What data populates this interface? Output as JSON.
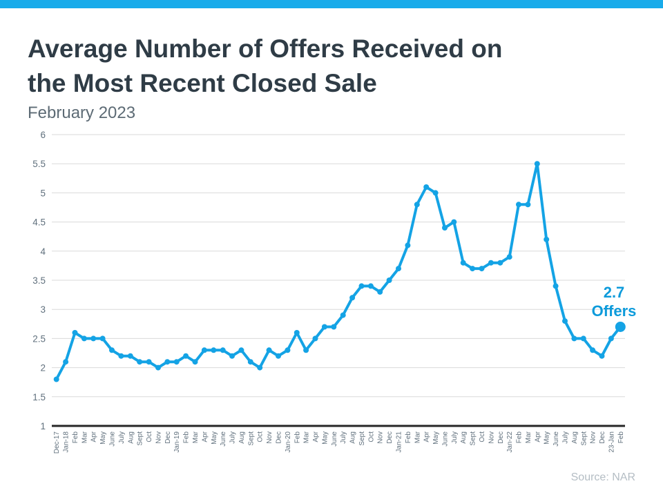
{
  "page": {
    "topbar_color": "#18abea",
    "background": "#ffffff"
  },
  "header": {
    "title_line1": "Average Number of Offers Received on",
    "title_line2": "the Most Recent Closed Sale",
    "subtitle": "February 2023"
  },
  "annotation": {
    "value": "2.7",
    "label": "Offers",
    "color": "#0d9bdb"
  },
  "source_note": "Source: NAR",
  "chart_data": {
    "type": "line",
    "title": "Average Number of Offers Received on the Most Recent Closed Sale",
    "subtitle": "February 2023",
    "xlabel": "",
    "ylabel": "",
    "ylim": [
      1,
      6
    ],
    "ytick_step": 0.5,
    "yticks": [
      6,
      5.5,
      5,
      4.5,
      4,
      3.5,
      3,
      2.5,
      2,
      1.5,
      1
    ],
    "grid": true,
    "legend_position": "none",
    "line_color": "#14a3e5",
    "gridline_color": "#d9d9d9",
    "axis_line_color": "#262626",
    "tick_label_color": "#60707d",
    "categories": [
      "Dec-17",
      "Jan-18",
      "Feb",
      "Mar",
      "Apr",
      "May",
      "June",
      "July",
      "Aug",
      "Sept",
      "Oct",
      "Nov",
      "Dec",
      "Jan-19",
      "Feb",
      "Mar",
      "Apr",
      "May",
      "June",
      "July",
      "Aug",
      "Sept",
      "Oct",
      "Nov",
      "Dec",
      "Jan-20",
      "Feb",
      "Mar",
      "Apr",
      "May",
      "June",
      "July",
      "Aug",
      "Sept",
      "Oct",
      "Nov",
      "Dec",
      "Jan-21",
      "Feb",
      "Mar",
      "Apr",
      "May",
      "June",
      "July",
      "Aug",
      "Sept",
      "Oct",
      "Nov",
      "Dec",
      "Jan-22",
      "Feb",
      "Mar",
      "Apr",
      "May",
      "June",
      "July",
      "Aug",
      "Sept",
      "Nov",
      "Dec",
      "23-Jan",
      "Feb"
    ],
    "values": [
      1.8,
      2.1,
      2.6,
      2.5,
      2.5,
      2.5,
      2.3,
      2.2,
      2.2,
      2.1,
      2.1,
      2.0,
      2.1,
      2.1,
      2.2,
      2.1,
      2.3,
      2.3,
      2.3,
      2.2,
      2.3,
      2.1,
      2.0,
      2.3,
      2.2,
      2.3,
      2.6,
      2.3,
      2.5,
      2.7,
      2.7,
      2.9,
      3.2,
      3.4,
      3.4,
      3.3,
      3.5,
      3.7,
      4.1,
      4.8,
      5.1,
      5.0,
      4.4,
      4.5,
      3.8,
      3.7,
      3.7,
      3.8,
      3.8,
      3.9,
      4.8,
      4.8,
      5.5,
      4.2,
      3.4,
      2.8,
      2.5,
      2.5,
      2.3,
      2.2,
      2.5,
      2.7
    ],
    "highlight_last_point": true
  }
}
